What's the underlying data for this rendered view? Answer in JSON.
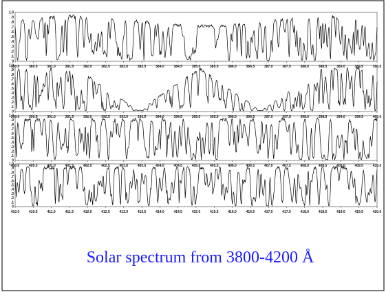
{
  "figure": {
    "y_tick_labels": [
      "1.0",
      ".9",
      ".8",
      ".7",
      ".6",
      ".5",
      ".4",
      ".3",
      ".2",
      ".1",
      "0"
    ],
    "panels": [
      {
        "x_tick_labels": [
          "380.0",
          "380.5",
          "381.0",
          "381.5",
          "382.0",
          "382.5",
          "383.0",
          "383.5",
          "384.0",
          "384.5",
          "385.0",
          "385.5",
          "386.0",
          "386.5",
          "387.0",
          "387.5",
          "388.0",
          "388.5",
          "389.0",
          "389.5",
          "390.0"
        ]
      },
      {
        "x_tick_labels": [
          "390.0",
          "390.5",
          "391.0",
          "391.5",
          "392.0",
          "392.5",
          "393.0",
          "393.5",
          "394.0",
          "394.5",
          "395.0",
          "395.5",
          "396.0",
          "396.5",
          "397.0",
          "397.5",
          "398.0",
          "398.5",
          "399.0",
          "399.5",
          "400.0"
        ]
      },
      {
        "x_tick_labels": [
          "400.0",
          "400.5",
          "401.0",
          "401.5",
          "402.0",
          "402.5",
          "403.0",
          "403.5",
          "404.0",
          "404.5",
          "405.0",
          "405.5",
          "406.0",
          "406.5",
          "407.0",
          "407.5",
          "408.0",
          "408.5",
          "409.0",
          "409.5",
          "410.0"
        ]
      },
      {
        "x_tick_labels": [
          "410.0",
          "410.5",
          "411.0",
          "411.5",
          "412.0",
          "412.5",
          "413.0",
          "413.5",
          "414.0",
          "414.5",
          "415.0",
          "415.5",
          "416.0",
          "416.5",
          "417.0",
          "417.5",
          "418.0",
          "418.5",
          "419.0",
          "419.5",
          "420.0"
        ]
      }
    ]
  },
  "caption": "Solar spectrum from 3800-4200 Å"
}
